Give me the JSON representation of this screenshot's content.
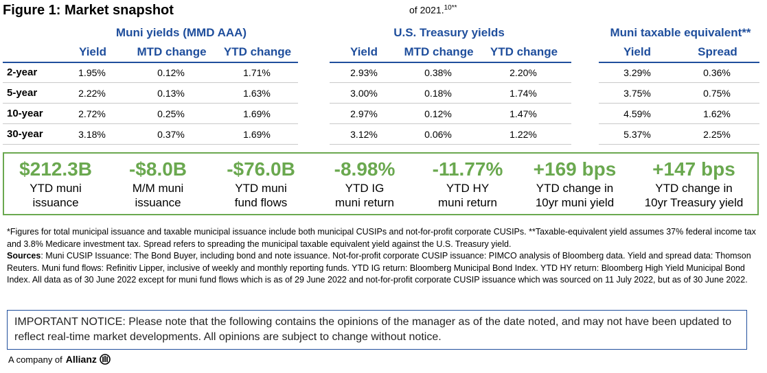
{
  "title": "Figure 1: Market snapshot",
  "date_note": "of 2021.",
  "date_note_sup": "10**",
  "groups": {
    "muni": "Muni yields (MMD AAA)",
    "treasury": "U.S. Treasury yields",
    "taxable": "Muni taxable equivalent**"
  },
  "columns": {
    "muni": [
      "Yield",
      "MTD change",
      "YTD change"
    ],
    "treasury": [
      "Yield",
      "MTD change",
      "YTD change"
    ],
    "taxable": [
      "Yield",
      "Spread"
    ]
  },
  "rows": [
    {
      "label": "2-year",
      "muni": [
        "1.95%",
        "0.12%",
        "1.71%"
      ],
      "treasury": [
        "2.93%",
        "0.38%",
        "2.20%"
      ],
      "taxable": [
        "3.29%",
        "0.36%"
      ]
    },
    {
      "label": "5-year",
      "muni": [
        "2.22%",
        "0.13%",
        "1.63%"
      ],
      "treasury": [
        "3.00%",
        "0.18%",
        "1.74%"
      ],
      "taxable": [
        "3.75%",
        "0.75%"
      ]
    },
    {
      "label": "10-year",
      "muni": [
        "2.72%",
        "0.25%",
        "1.69%"
      ],
      "treasury": [
        "2.97%",
        "0.12%",
        "1.47%"
      ],
      "taxable": [
        "4.59%",
        "1.62%"
      ]
    },
    {
      "label": "30-year",
      "muni": [
        "3.18%",
        "0.37%",
        "1.69%"
      ],
      "treasury": [
        "3.12%",
        "0.06%",
        "1.22%"
      ],
      "taxable": [
        "5.37%",
        "2.25%"
      ]
    }
  ],
  "stats": [
    {
      "value": "$212.3B",
      "line1": "YTD muni",
      "line2": "issuance"
    },
    {
      "value": "-$8.0B",
      "line1": "M/M muni",
      "line2": "issuance"
    },
    {
      "value": "-$76.0B",
      "line1": "YTD muni",
      "line2": "fund flows"
    },
    {
      "value": "-8.98%",
      "line1": "YTD IG",
      "line2": "muni return"
    },
    {
      "value": "-11.77%",
      "line1": "YTD HY",
      "line2": "muni return"
    },
    {
      "value": "+169 bps",
      "line1": "YTD change in",
      "line2": "10yr muni yield"
    },
    {
      "value": "+147 bps",
      "line1": "YTD change in",
      "line2": "10yr Treasury yield"
    }
  ],
  "footnote": {
    "p1": "*Figures for total municipal issuance and taxable municipal issuance include both municipal CUSIPs and not-for-profit corporate CUSIPs. **Taxable-equivalent yield assumes 37% federal income tax and 3.8% Medicare investment tax. Spread refers to spreading the municipal taxable equivalent yield against the U.S. Treasury yield.",
    "sources_label": "Sources",
    "sources_text": ": Muni CUSIP Issuance: The Bond Buyer, including bond and note issuance. Not-for-profit corporate CUSIP issuance: PIMCO analysis of Bloomberg data. Yield and spread data: Thomson Reuters. Muni fund flows: Refinitiv Lipper, inclusive of weekly and monthly reporting funds. YTD IG return: Bloomberg Municipal Bond Index. YTD HY return: Bloomberg High Yield Municipal Bond Index. All data as of 30 June 2022 except for muni fund flows which is as of 29 June 2022 and not-for-profit corporate CUSIP issuance which was sourced on 11 July 2022, but as of 30 June 2022."
  },
  "notice": "IMPORTANT NOTICE: Please note that the following contains the opinions of the manager as of the date noted, and may not have been updated to reflect real-time market developments. All opinions are subject to change without notice.",
  "brand": {
    "prefix": "A company of",
    "name": "Allianz"
  },
  "colors": {
    "blue": "#1f4e9c",
    "green": "#6aa84f"
  }
}
